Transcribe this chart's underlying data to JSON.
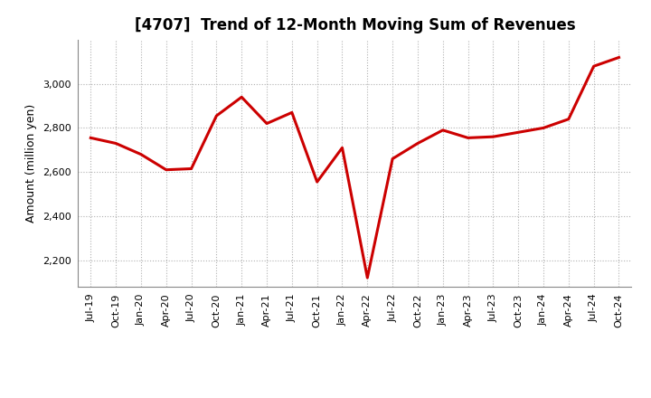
{
  "title": "[4707]  Trend of 12-Month Moving Sum of Revenues",
  "ylabel": "Amount (million yen)",
  "line_color": "#cc0000",
  "line_width": 2.2,
  "background_color": "#ffffff",
  "grid_color": "#b0b0b0",
  "ylim": [
    2080,
    3200
  ],
  "yticks": [
    2200,
    2400,
    2600,
    2800,
    3000
  ],
  "values": [
    2755,
    2730,
    2680,
    2610,
    2615,
    2855,
    2940,
    2820,
    2870,
    2555,
    2710,
    2120,
    2660,
    2730,
    2790,
    2755,
    2760,
    2780,
    2800,
    2840,
    3080,
    3120
  ],
  "tick_labels": [
    "Jul-19",
    "Oct-19",
    "Jan-20",
    "Apr-20",
    "Jul-20",
    "Oct-20",
    "Jan-21",
    "Apr-21",
    "Jul-21",
    "Oct-21",
    "Jan-22",
    "Apr-22",
    "Jul-22",
    "Oct-22",
    "Jan-23",
    "Apr-23",
    "Jul-23",
    "Oct-23",
    "Jan-24",
    "Apr-24",
    "Jul-24",
    "Oct-24"
  ],
  "title_fontsize": 12,
  "label_fontsize": 9,
  "tick_fontsize": 8
}
